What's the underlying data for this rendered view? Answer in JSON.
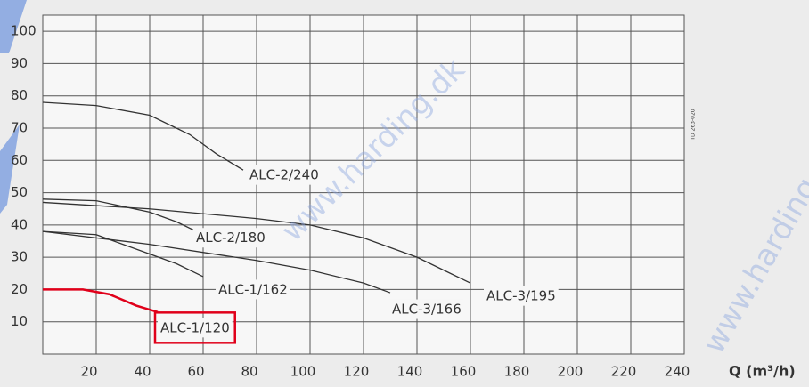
{
  "chart_data": {
    "type": "line",
    "x_label": "Q (m³/h)",
    "xlim": [
      0,
      240
    ],
    "ylim": [
      0,
      105
    ],
    "xticks": [
      20,
      40,
      60,
      80,
      100,
      120,
      140,
      160,
      180,
      200,
      220,
      240
    ],
    "yticks": [
      10,
      20,
      30,
      40,
      50,
      60,
      70,
      80,
      90,
      100
    ],
    "grid": true,
    "watermark": "www.harding.dk",
    "drawing_code": "TD 263-020",
    "series": [
      {
        "name": "ALC-2/240",
        "color": "#333333",
        "x": [
          0,
          20,
          40,
          55,
          65,
          75
        ],
        "values": [
          78,
          77,
          74,
          68,
          62,
          57
        ]
      },
      {
        "name": "ALC-2/180",
        "color": "#333333",
        "x": [
          0,
          20,
          40,
          50,
          60
        ],
        "values": [
          48,
          47.5,
          44,
          41,
          37
        ]
      },
      {
        "name": "ALC-3/195",
        "color": "#333333",
        "x": [
          0,
          40,
          80,
          100,
          120,
          140,
          160
        ],
        "values": [
          47,
          45,
          42,
          40,
          36,
          30,
          22
        ]
      },
      {
        "name": "ALC-1/162",
        "color": "#333333",
        "x": [
          0,
          20,
          40,
          50,
          60
        ],
        "values": [
          38,
          37,
          31,
          28,
          24
        ]
      },
      {
        "name": "ALC-3/166",
        "color": "#333333",
        "x": [
          0,
          40,
          80,
          100,
          120,
          130
        ],
        "values": [
          38,
          34,
          29,
          26,
          22,
          19
        ]
      },
      {
        "name": "ALC-1/120",
        "color": "#e0001a",
        "highlight": true,
        "x": [
          0,
          15,
          25,
          35,
          43
        ],
        "values": [
          20,
          20,
          18.5,
          15,
          13
        ]
      }
    ]
  }
}
